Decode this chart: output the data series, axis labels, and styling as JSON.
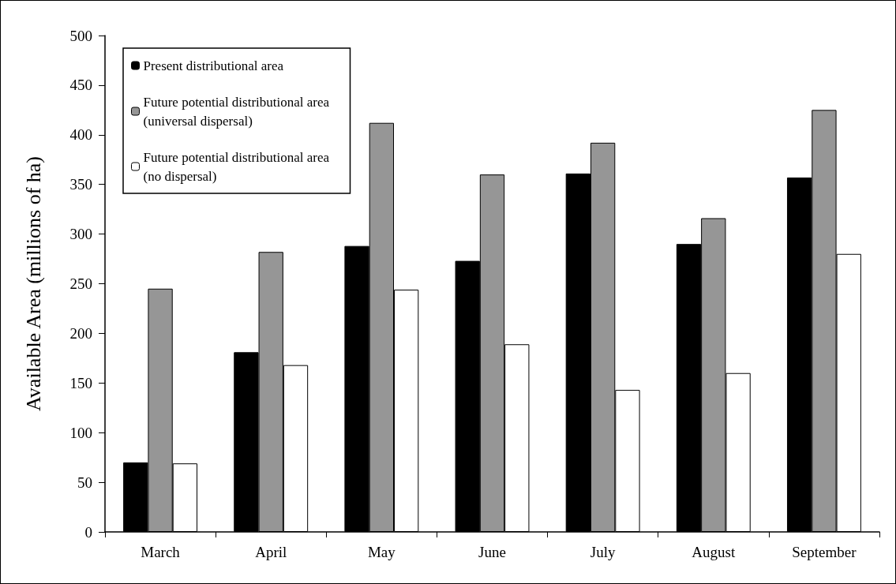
{
  "chart_data": {
    "type": "bar",
    "ylabel": "Available Area (millions of ha)",
    "categories": [
      "March",
      "April",
      "May",
      "June",
      "July",
      "August",
      "September"
    ],
    "series": [
      {
        "name": "Present distributional area",
        "color": "#000000",
        "values": [
          70,
          181,
          288,
          273,
          361,
          290,
          357
        ]
      },
      {
        "name": "Future potential distributional area (universal dispersal)",
        "color": "#969696",
        "values": [
          245,
          282,
          412,
          360,
          392,
          316,
          425
        ]
      },
      {
        "name": "Future potential distributional area (no dispersal)",
        "color": "#ffffff",
        "values": [
          69,
          168,
          244,
          189,
          143,
          160,
          280
        ]
      }
    ],
    "ylim": [
      0,
      500
    ],
    "yticks": [
      0,
      50,
      100,
      150,
      200,
      250,
      300,
      350,
      400,
      450,
      500
    ],
    "grid": false,
    "legend": "top left"
  }
}
